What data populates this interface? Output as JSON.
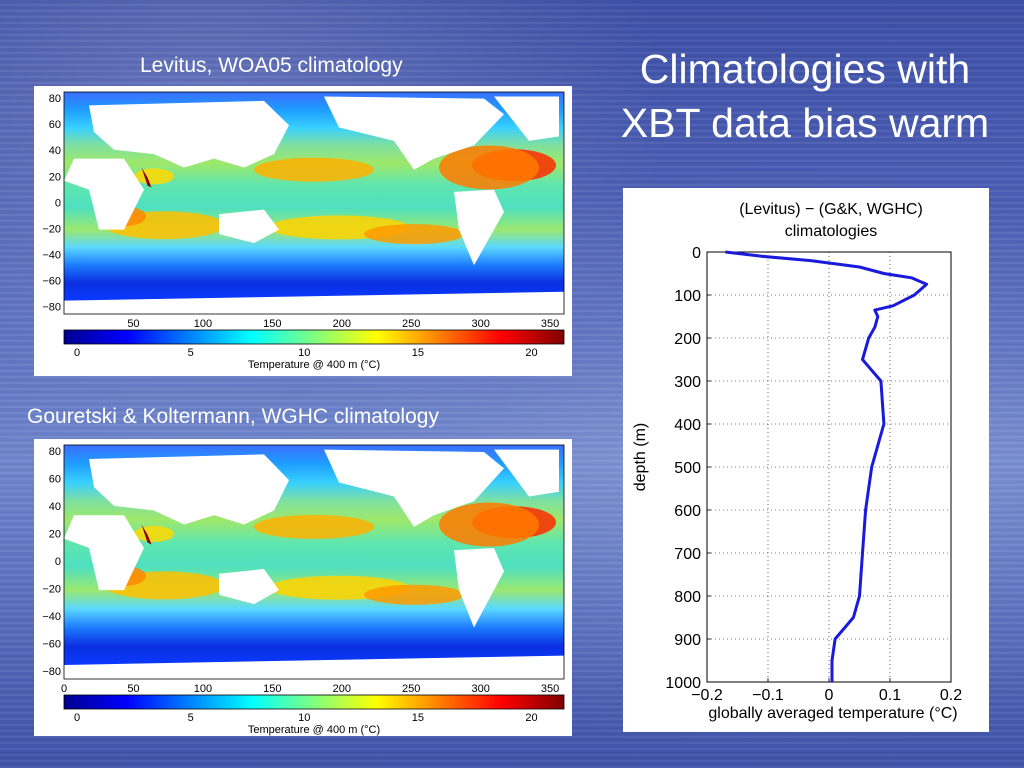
{
  "slide": {
    "title_line1": "Climatologies with",
    "title_line2": "XBT data bias warm",
    "caption_top": "Levitus, WOA05 climatology",
    "caption_bottom": "Gouretski & Koltermann, WGHC climatology"
  },
  "maps": [
    {
      "lat_ticks": [
        "80",
        "60",
        "40",
        "20",
        "0",
        "−20",
        "−40",
        "−60",
        "−80"
      ],
      "lon_ticks": [
        "50",
        "100",
        "150",
        "200",
        "250",
        "300",
        "350"
      ],
      "colorbar_ticks": [
        "0",
        "5",
        "10",
        "15",
        "20"
      ],
      "colorbar_label": "Temperature @ 400 m (°C)"
    },
    {
      "lat_ticks": [
        "80",
        "60",
        "40",
        "20",
        "0",
        "−20",
        "−40",
        "−60",
        "−80"
      ],
      "lon_ticks": [
        "0",
        "50",
        "100",
        "150",
        "200",
        "250",
        "300",
        "350"
      ],
      "colorbar_ticks": [
        "0",
        "5",
        "10",
        "15",
        "20"
      ],
      "colorbar_label": "Temperature @ 400 m (°C)"
    }
  ],
  "colors": {
    "line": "#1a1adc",
    "colormap": [
      "#00008f",
      "#0000ff",
      "#0080ff",
      "#00ffff",
      "#80ff80",
      "#ffff00",
      "#ff8000",
      "#ff0000",
      "#800000"
    ]
  },
  "chart_data": {
    "type": "line",
    "title": "(Levitus) − (G&K, WGHC) climatologies",
    "title_line1": "(Levitus) − (G&K, WGHC)",
    "title_line2": "climatologies",
    "xlabel": "globally averaged temperature (°C)",
    "ylabel": "depth (m)",
    "xlim": [
      -0.2,
      0.2
    ],
    "ylim": [
      0,
      1000
    ],
    "y_reversed": true,
    "grid": true,
    "x_ticks": [
      "−0.2",
      "−0.1",
      "0",
      "0.1",
      "0.2"
    ],
    "y_ticks": [
      "0",
      "100",
      "200",
      "300",
      "400",
      "500",
      "600",
      "700",
      "800",
      "900",
      "1000"
    ],
    "series": [
      {
        "x": [
          -0.17,
          -0.11,
          -0.03,
          0.05,
          0.09,
          0.135,
          0.16,
          0.14,
          0.105,
          0.075,
          0.08,
          0.075,
          0.065,
          0.06,
          0.055,
          0.07,
          0.085,
          0.09,
          0.08,
          0.07,
          0.06,
          0.055,
          0.05,
          0.04,
          0.01,
          0.005,
          0.005
        ],
        "y": [
          0,
          10,
          20,
          35,
          50,
          60,
          75,
          100,
          125,
          135,
          150,
          175,
          200,
          225,
          250,
          275,
          300,
          400,
          450,
          500,
          600,
          700,
          800,
          850,
          900,
          950,
          1000
        ]
      }
    ]
  }
}
